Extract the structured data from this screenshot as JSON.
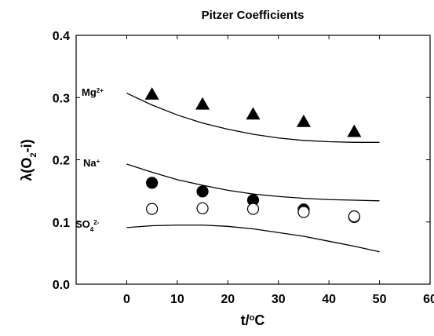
{
  "chart_data": {
    "type": "scatter",
    "title": "Pitzer Coefficients",
    "x_label": {
      "text": "t/",
      "sup": "o",
      "tail": "C"
    },
    "y_label": {
      "text": "λ(O",
      "sub": "2",
      "tail": "-i)"
    },
    "xlim": [
      -10,
      60
    ],
    "ylim": [
      0,
      0.4
    ],
    "xticks": [
      0,
      10,
      20,
      30,
      40,
      50,
      60
    ],
    "yticks": [
      {
        "value": 0,
        "label": "0.0"
      },
      {
        "value": 0.1,
        "label": "0.1"
      },
      {
        "value": 0.2,
        "label": "0.2"
      },
      {
        "value": 0.3,
        "label": "0.3"
      },
      {
        "value": 0.4,
        "label": "0.4"
      }
    ],
    "annotations": [
      {
        "text": "Mg",
        "sup": "2+"
      },
      {
        "text": "Na",
        "sup": "+"
      },
      {
        "text": "SO",
        "sub": "4",
        "sup": "2-"
      }
    ],
    "series": [
      {
        "kind": "points",
        "marker": "triangle",
        "color": "#000000",
        "x": [
          5,
          15,
          25,
          35,
          45
        ],
        "values": [
          0.305,
          0.289,
          0.273,
          0.261,
          0.245
        ]
      },
      {
        "kind": "points",
        "marker": "circle",
        "color": "#000000",
        "x": [
          5,
          15,
          25,
          35,
          45
        ],
        "values": [
          0.163,
          0.149,
          0.135,
          0.12,
          0.108
        ]
      },
      {
        "kind": "points",
        "marker": "circle",
        "color": "#ffffff",
        "x": [
          5,
          15,
          25,
          35,
          45
        ],
        "values": [
          0.121,
          0.122,
          0.121,
          0.116,
          0.109
        ]
      },
      {
        "kind": "line",
        "color": "#000000",
        "x": [
          0,
          5,
          10,
          15,
          20,
          25,
          30,
          35,
          40,
          45,
          50
        ],
        "values": [
          0.307,
          0.288,
          0.272,
          0.259,
          0.249,
          0.241,
          0.235,
          0.231,
          0.229,
          0.228,
          0.228
        ]
      },
      {
        "kind": "line",
        "color": "#000000",
        "x": [
          0,
          5,
          10,
          15,
          20,
          25,
          30,
          35,
          40,
          45,
          50
        ],
        "values": [
          0.193,
          0.18,
          0.168,
          0.159,
          0.151,
          0.145,
          0.141,
          0.138,
          0.136,
          0.135,
          0.134
        ]
      },
      {
        "kind": "line",
        "color": "#000000",
        "x": [
          0,
          5,
          10,
          15,
          20,
          25,
          30,
          35,
          40,
          45,
          50
        ],
        "values": [
          0.091,
          0.094,
          0.095,
          0.095,
          0.093,
          0.089,
          0.083,
          0.077,
          0.069,
          0.061,
          0.052
        ]
      }
    ]
  }
}
